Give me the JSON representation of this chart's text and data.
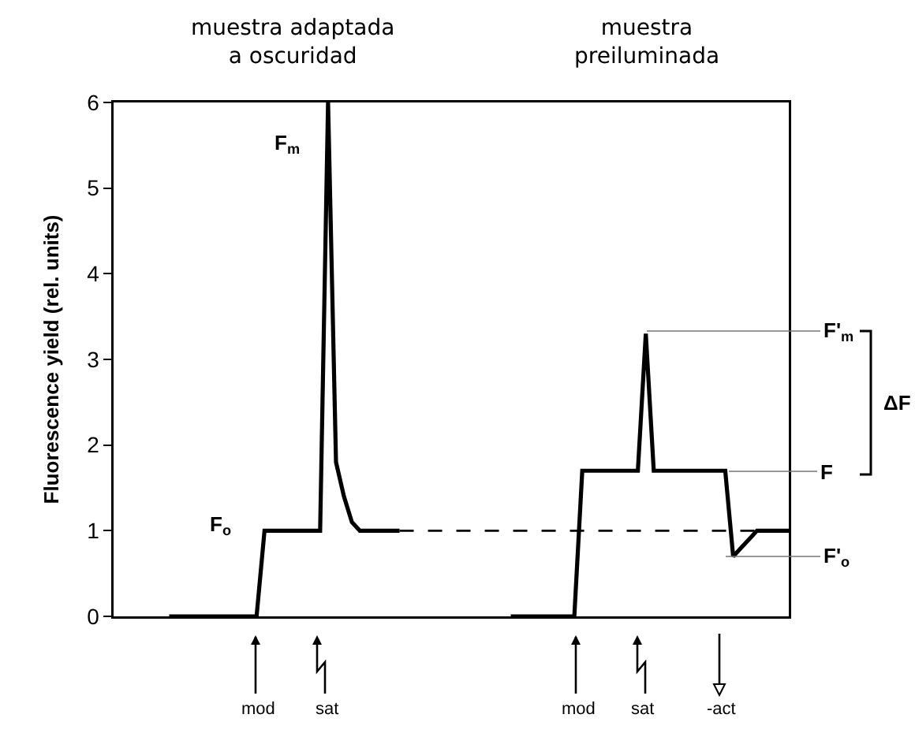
{
  "chart_data": {
    "type": "line",
    "categories": [
      null,
      null,
      null,
      null,
      null,
      null,
      null,
      null,
      null,
      null,
      null,
      null,
      null,
      null,
      null,
      null,
      null,
      null,
      null,
      null,
      null,
      null,
      null,
      null,
      null,
      null,
      null,
      null,
      null,
      null,
      null,
      null,
      null,
      null,
      null,
      null,
      null,
      null,
      null,
      null,
      null,
      null,
      null,
      null,
      null,
      null,
      null,
      null,
      null,
      null,
      null,
      null,
      null,
      null,
      null,
      null,
      null,
      null,
      null,
      null,
      null,
      null,
      null,
      null,
      null,
      null,
      null,
      null,
      null,
      null,
      null,
      null,
      null,
      null,
      null,
      null,
      null,
      null,
      null,
      null,
      null,
      null,
      null,
      null,
      null,
      null
    ],
    "series": [
      {
        "color": "#000000",
        "line_style": "solid",
        "values": [
          null,
          null,
          null,
          null,
          null,
          null,
          null,
          0,
          0,
          0,
          0,
          0,
          0,
          0,
          0,
          0,
          0,
          0,
          0,
          1,
          1,
          1,
          1,
          1,
          1,
          1,
          1,
          6,
          1.8,
          1.4,
          1.1,
          1,
          1,
          1,
          1,
          1,
          1,
          null,
          null,
          null,
          null,
          null,
          null,
          null,
          null,
          null,
          null,
          null,
          null,
          null,
          null,
          null,
          null,
          null,
          null,
          null,
          null,
          null,
          null,
          null,
          null,
          null,
          null,
          null,
          null,
          null,
          null,
          null,
          null,
          null,
          null,
          null,
          null,
          null,
          null,
          null,
          null,
          null,
          null,
          null,
          null,
          null,
          null,
          null,
          null,
          null
        ]
      },
      {
        "color": "#000000",
        "line_style": "dashed",
        "values": [
          null,
          null,
          null,
          null,
          null,
          null,
          null,
          null,
          null,
          null,
          null,
          null,
          null,
          null,
          null,
          null,
          null,
          null,
          null,
          null,
          null,
          null,
          null,
          null,
          null,
          null,
          null,
          null,
          null,
          null,
          null,
          null,
          null,
          null,
          null,
          null,
          1,
          1,
          1,
          1,
          1,
          1,
          1,
          1,
          1,
          1,
          1,
          1,
          1,
          1,
          1,
          1,
          1,
          1,
          1,
          1,
          1,
          1,
          1,
          1,
          1,
          1,
          1,
          1,
          1,
          1,
          1,
          1,
          1,
          1,
          1,
          1,
          1,
          1,
          1,
          1,
          1,
          1,
          1,
          1,
          1,
          1,
          1,
          1,
          1,
          1
        ]
      },
      {
        "color": "#000000",
        "line_style": "solid",
        "values": [
          null,
          null,
          null,
          null,
          null,
          null,
          null,
          null,
          null,
          null,
          null,
          null,
          null,
          null,
          null,
          null,
          null,
          null,
          null,
          null,
          null,
          null,
          null,
          null,
          null,
          null,
          null,
          null,
          null,
          null,
          null,
          null,
          null,
          null,
          null,
          null,
          null,
          null,
          null,
          null,
          null,
          null,
          null,
          null,
          null,
          null,
          null,
          null,
          null,
          null,
          0,
          0,
          0,
          0,
          0,
          0,
          0,
          0,
          0,
          1.7,
          1.7,
          1.7,
          1.7,
          1.7,
          1.7,
          1.7,
          1.7,
          3.3,
          1.7,
          1.7,
          1.7,
          1.7,
          1.7,
          1.7,
          1.7,
          1.7,
          1.7,
          1.7,
          0.7,
          0.8,
          0.9,
          1,
          1,
          1,
          1,
          1
        ]
      }
    ],
    "ylabel": "Fluorescence yield (rel. units)",
    "ylim": [
      0,
      6
    ],
    "yticks": [
      0,
      1,
      2,
      3,
      4,
      5,
      6
    ],
    "grid": false,
    "legend": false,
    "marker": "none",
    "tick_labels": "y",
    "annotations": [
      "muestra adaptada\na oscuridad",
      "muestra\npreiluminada",
      "F$_{m}$",
      "F$_{o}$",
      "F'$_{m}$",
      "F",
      "F'$_{o}$",
      "ΔF",
      "mod",
      "sat",
      "mod",
      "sat",
      "-act"
    ]
  }
}
